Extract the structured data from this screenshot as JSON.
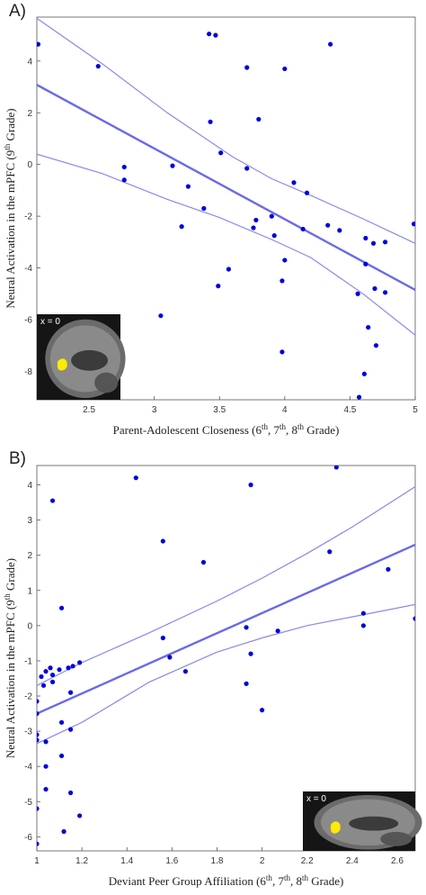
{
  "colors": {
    "series": "#0000dd",
    "fit": "#6a6ae8",
    "ci": "#8888ee",
    "highlight": "#ffea00"
  },
  "chart_data": [
    {
      "type": "scatter",
      "panel_label": "A)",
      "xlabel": "Parent-Adolescent Closeness (6th, 7th, 8th Grade)",
      "ylabel": "Neural Activation in the mPFC (9th Grade)",
      "xlim": [
        2.1,
        5.0
      ],
      "ylim": [
        -9.1,
        5.7
      ],
      "xticks": [
        "2.5",
        "3",
        "3.5",
        "4",
        "4.5",
        "5"
      ],
      "yticks": [
        "4",
        "2",
        "0",
        "-2",
        "-4",
        "-6",
        "-8"
      ],
      "inset_label": "x = 0",
      "points": [
        [
          2.11,
          4.65
        ],
        [
          2.57,
          3.8
        ],
        [
          2.77,
          -0.1
        ],
        [
          2.77,
          -0.6
        ],
        [
          3.05,
          -5.85
        ],
        [
          3.14,
          -0.05
        ],
        [
          3.21,
          -2.4
        ],
        [
          3.26,
          -0.85
        ],
        [
          3.38,
          -1.7
        ],
        [
          3.42,
          5.05
        ],
        [
          3.43,
          1.65
        ],
        [
          3.47,
          5.0
        ],
        [
          3.49,
          -4.7
        ],
        [
          3.51,
          0.45
        ],
        [
          3.57,
          -4.05
        ],
        [
          3.71,
          -0.15
        ],
        [
          3.71,
          3.75
        ],
        [
          3.76,
          -2.45
        ],
        [
          3.78,
          -2.15
        ],
        [
          3.8,
          1.75
        ],
        [
          3.9,
          -2.0
        ],
        [
          3.92,
          -2.75
        ],
        [
          3.98,
          -4.5
        ],
        [
          3.98,
          -7.25
        ],
        [
          4.0,
          3.7
        ],
        [
          4.0,
          -3.7
        ],
        [
          4.07,
          -0.7
        ],
        [
          4.14,
          -2.5
        ],
        [
          4.17,
          -1.1
        ],
        [
          4.33,
          -2.35
        ],
        [
          4.35,
          4.65
        ],
        [
          4.42,
          -2.55
        ],
        [
          4.56,
          -5.0
        ],
        [
          4.57,
          -9.0
        ],
        [
          4.61,
          -8.1
        ],
        [
          4.62,
          -2.85
        ],
        [
          4.62,
          -3.85
        ],
        [
          4.64,
          -6.3
        ],
        [
          4.68,
          -3.05
        ],
        [
          4.69,
          -4.8
        ],
        [
          4.7,
          -7.0
        ],
        [
          4.77,
          -3.0
        ],
        [
          4.77,
          -4.95
        ],
        [
          4.99,
          -2.3
        ]
      ],
      "fit_line": [
        [
          2.1,
          3.08
        ],
        [
          5.0,
          -4.85
        ]
      ],
      "ci_upper": [
        [
          2.1,
          5.65
        ],
        [
          2.6,
          3.9
        ],
        [
          3.1,
          2.0
        ],
        [
          3.6,
          0.3
        ],
        [
          3.9,
          -0.55
        ],
        [
          4.2,
          -1.2
        ],
        [
          4.6,
          -2.1
        ],
        [
          5.0,
          -3.05
        ]
      ],
      "ci_lower": [
        [
          2.1,
          0.4
        ],
        [
          2.6,
          -0.35
        ],
        [
          3.1,
          -1.35
        ],
        [
          3.5,
          -2.05
        ],
        [
          3.9,
          -2.9
        ],
        [
          4.2,
          -3.6
        ],
        [
          4.6,
          -5.0
        ],
        [
          5.0,
          -6.6
        ]
      ]
    },
    {
      "type": "scatter",
      "panel_label": "B)",
      "xlabel": "Deviant Peer Group Affiliation (6th, 7th, 8th Grade)",
      "ylabel": "Neural Activation in the mPFC (9th Grade)",
      "xlim": [
        1.0,
        2.68
      ],
      "ylim": [
        -6.4,
        4.55
      ],
      "xticks": [
        "1",
        "1.2",
        "1.4",
        "1.6",
        "1.8",
        "2",
        "2.2",
        "2.4",
        "2.6"
      ],
      "yticks": [
        "4",
        "3",
        "2",
        "1",
        "0",
        "-1",
        "-2",
        "-3",
        "-4",
        "-5",
        "-6"
      ],
      "inset_label": "x = 0",
      "points": [
        [
          1.0,
          -2.15
        ],
        [
          1.0,
          -2.5
        ],
        [
          1.0,
          -3.1
        ],
        [
          1.0,
          -3.25
        ],
        [
          1.0,
          -5.2
        ],
        [
          1.0,
          -6.2
        ],
        [
          1.02,
          -1.45
        ],
        [
          1.03,
          -1.7
        ],
        [
          1.04,
          -1.3
        ],
        [
          1.04,
          -3.3
        ],
        [
          1.04,
          -4.0
        ],
        [
          1.04,
          -4.65
        ],
        [
          1.06,
          -1.2
        ],
        [
          1.07,
          -1.4
        ],
        [
          1.07,
          -1.6
        ],
        [
          1.07,
          3.55
        ],
        [
          1.1,
          -1.25
        ],
        [
          1.11,
          -2.75
        ],
        [
          1.11,
          -3.7
        ],
        [
          1.11,
          0.5
        ],
        [
          1.12,
          -5.85
        ],
        [
          1.14,
          -1.2
        ],
        [
          1.15,
          -1.9
        ],
        [
          1.15,
          -2.95
        ],
        [
          1.15,
          -4.75
        ],
        [
          1.16,
          -1.15
        ],
        [
          1.19,
          -1.05
        ],
        [
          1.19,
          -5.4
        ],
        [
          1.44,
          4.2
        ],
        [
          1.56,
          -0.35
        ],
        [
          1.56,
          2.4
        ],
        [
          1.59,
          -0.9
        ],
        [
          1.66,
          -1.3
        ],
        [
          1.74,
          1.8
        ],
        [
          1.93,
          -0.05
        ],
        [
          1.93,
          -1.65
        ],
        [
          1.95,
          -0.8
        ],
        [
          1.95,
          4.0
        ],
        [
          2.0,
          -2.4
        ],
        [
          2.07,
          -0.15
        ],
        [
          2.3,
          2.1
        ],
        [
          2.33,
          4.5
        ],
        [
          2.45,
          0.35
        ],
        [
          2.45,
          0.0
        ],
        [
          2.56,
          1.6
        ],
        [
          2.68,
          0.2
        ]
      ],
      "fit_line": [
        [
          1.0,
          -2.5
        ],
        [
          2.68,
          2.3
        ]
      ],
      "ci_upper": [
        [
          1.0,
          -1.7
        ],
        [
          1.2,
          -1.05
        ],
        [
          1.5,
          -0.2
        ],
        [
          1.8,
          0.7
        ],
        [
          2.0,
          1.35
        ],
        [
          2.2,
          2.05
        ],
        [
          2.4,
          2.8
        ],
        [
          2.68,
          3.95
        ]
      ],
      "ci_lower": [
        [
          1.0,
          -3.35
        ],
        [
          1.2,
          -2.75
        ],
        [
          1.5,
          -1.6
        ],
        [
          1.8,
          -0.75
        ],
        [
          2.0,
          -0.35
        ],
        [
          2.2,
          0.0
        ],
        [
          2.4,
          0.25
        ],
        [
          2.68,
          0.6
        ]
      ]
    }
  ]
}
